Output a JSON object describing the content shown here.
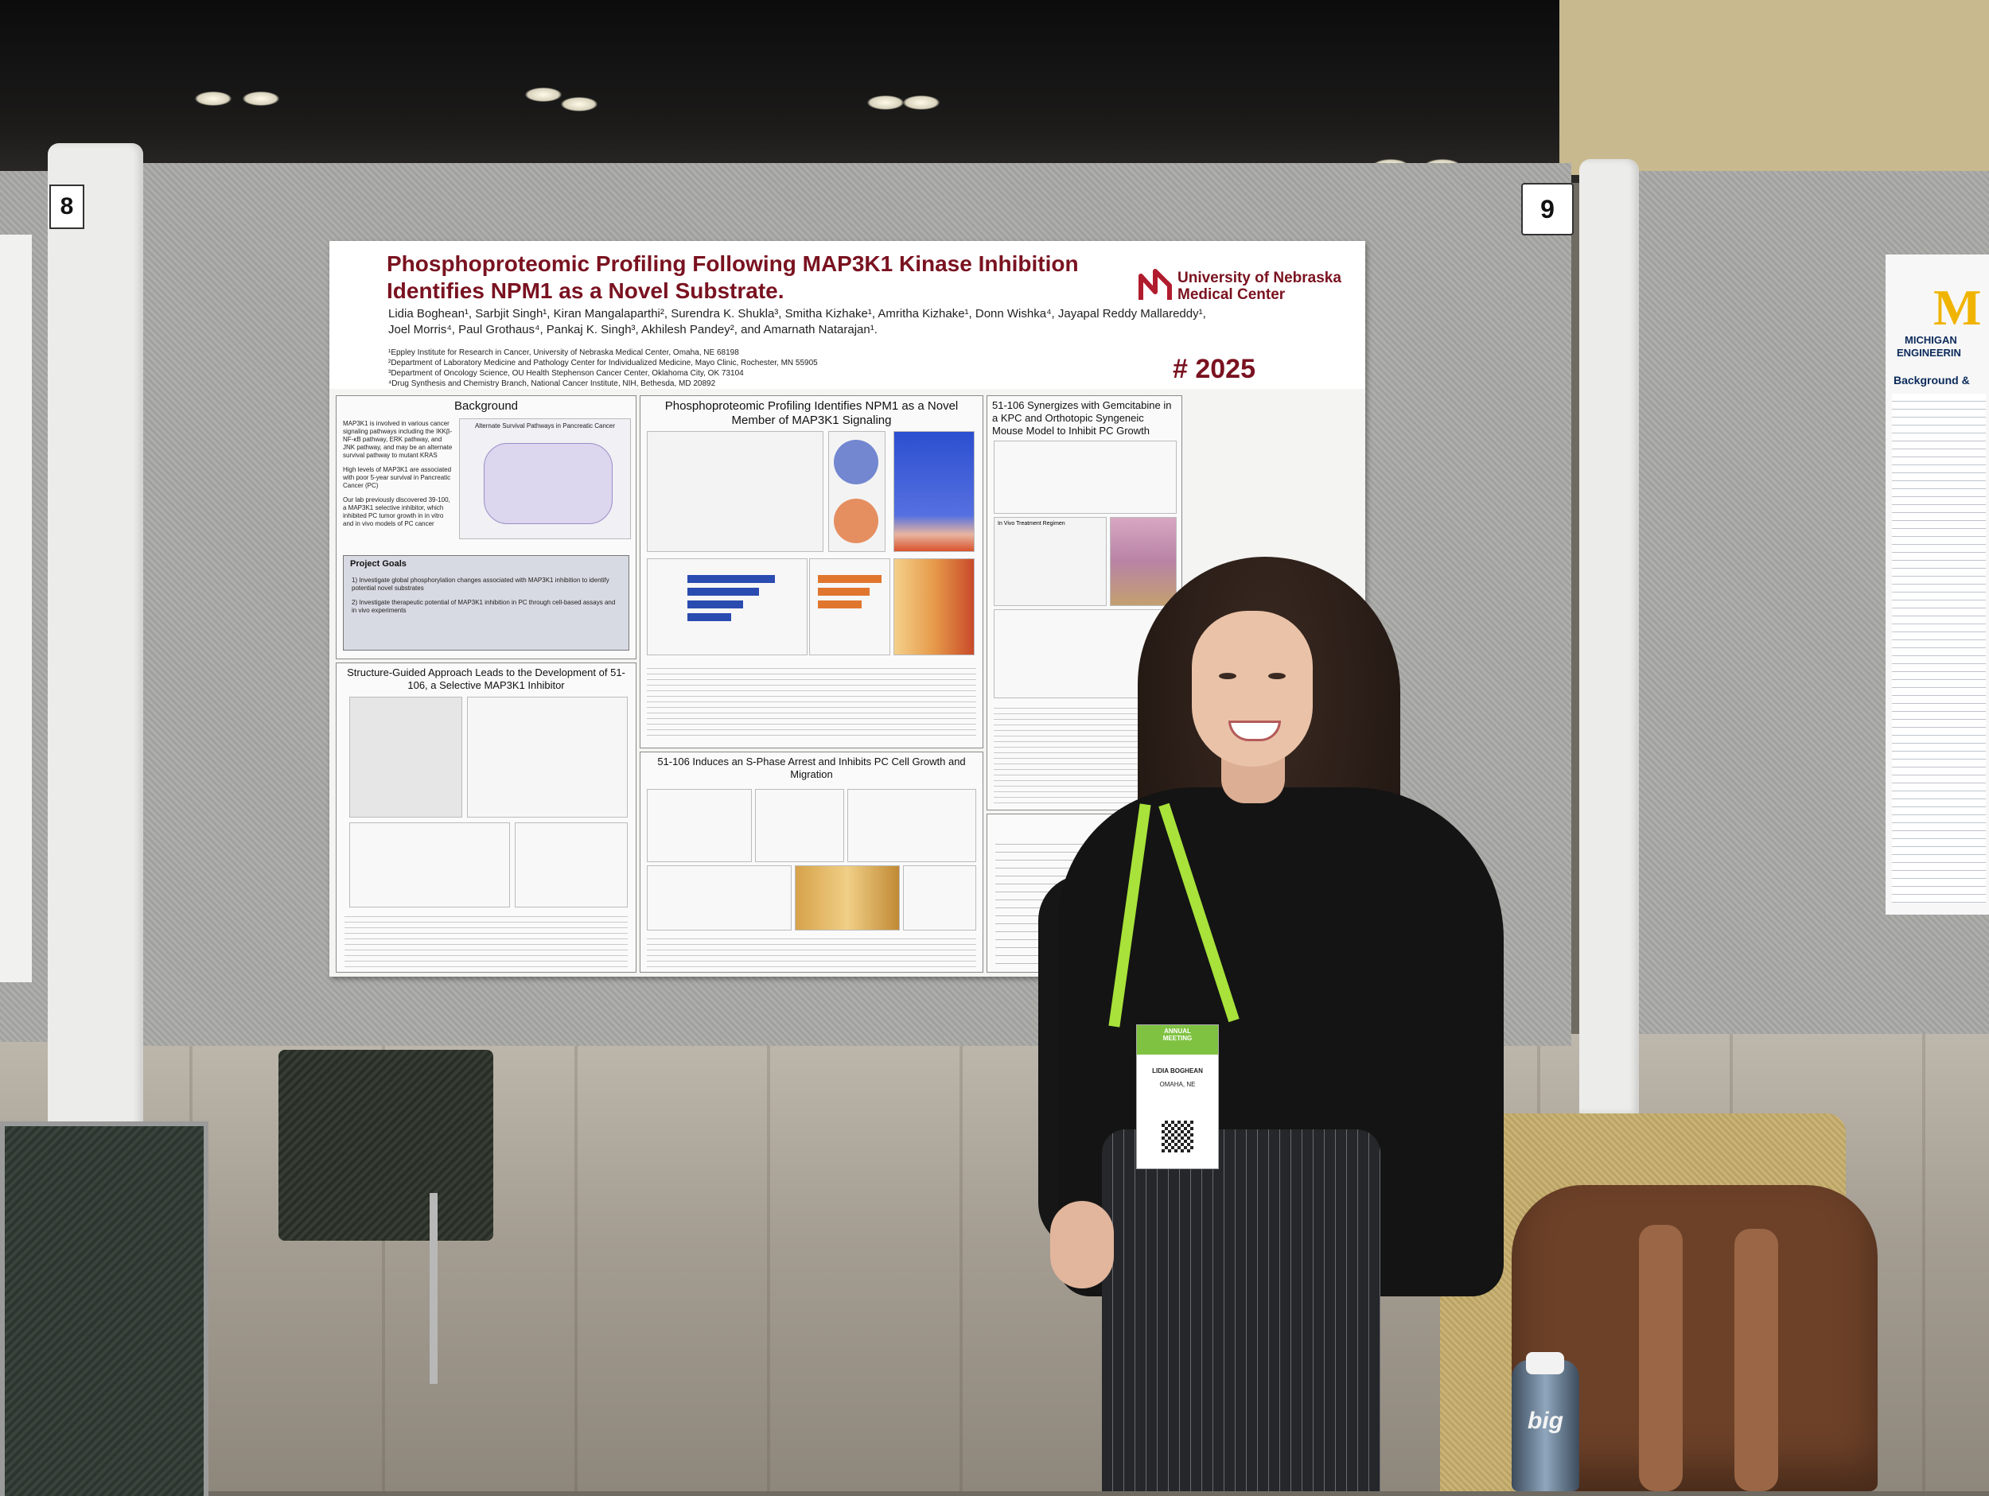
{
  "scene": {
    "board_numbers": {
      "left": "8",
      "main": "9"
    }
  },
  "poster": {
    "title_line1": "Phosphoproteomic Profiling Following MAP3K1 Kinase Inhibition",
    "title_line2": "Identifies NPM1 as a Novel Substrate.",
    "authors_line1": "Lidia Boghean¹, Sarbjit Singh¹, Kiran Mangalaparthi², Surendra K. Shukla³, Smitha Kizhake¹, Amritha Kizhake¹, Donn Wishka⁴, Jayapal Reddy Mallareddy¹,",
    "authors_line2": "Joel Morris⁴, Paul Grothaus⁴, Pankaj K. Singh³, Akhilesh Pandey², and Amarnath Natarajan¹.",
    "affiliations": [
      "¹Eppley Institute for Research in Cancer, University of Nebraska Medical Center, Omaha, NE 68198",
      "²Department of Laboratory Medicine and Pathology Center for Individualized Medicine, Mayo Clinic, Rochester, MN 55905",
      "³Department of Oncology Science, OU Health Stephenson Cancer Center, Oklahoma City, OK 73104",
      "⁴Drug Synthesis and Chemistry Branch, National Cancer Institute, NIH, Bethesda, MD 20892"
    ],
    "logo_line1": "University of Nebraska",
    "logo_line2": "Medical Center",
    "poster_number": "# 2025",
    "sections": {
      "background": {
        "title": "Background",
        "bullets": [
          "MAP3K1 is involved in various cancer signaling pathways including the IKKβ-NF-κB pathway, ERK pathway, and JNK pathway, and may be an alternate survival pathway to mutant KRAS",
          "High levels of MAP3K1 are associated with poor 5-year survival in Pancreatic Cancer (PC)",
          "Our lab previously discovered 39-100, a MAP3K1 selective inhibitor, which inhibited PC tumor growth in in vitro and in vivo models of PC cancer"
        ],
        "figure_title": "Alternate Survival Pathways in Pancreatic Cancer"
      },
      "project_goals": {
        "title": "Project Goals",
        "items": [
          "1)  Investigate global phosphorylation changes associated with MAP3K1 inhibition to identify potential novel substrates",
          "2)  Investigate therapeutic potential of MAP3K1 inhibition in PC through cell-based assays and in vivo experiments"
        ]
      },
      "structure": {
        "title": "Structure-Guided Approach Leads to the Development of 51-106, a Selective MAP3K1 Inhibitor"
      },
      "phospho": {
        "title": "Phosphoproteomic Profiling Identifies NPM1 as a Novel Member of MAP3K1 Signaling"
      },
      "sphase": {
        "title": "51-106 Induces an S-Phase Arrest and Inhibits PC Cell Growth and Migration"
      },
      "synergy": {
        "title": "51-106 Synergizes with Gemcitabine in a KPC and Orthotopic Syngeneic Mouse Model to Inhibit PC Growth",
        "regimen_label": "In Vivo Treatment Regimen"
      },
      "conclusions": {
        "title": "Conclus"
      }
    }
  },
  "badge": {
    "event_line1": "ANNUAL",
    "event_line2": "MEETING",
    "name": "LIDIA BOGHEAN",
    "location": "OMAHA, NE"
  },
  "right_poster": {
    "logo": "M",
    "line1": "MICHIGAN",
    "line2": "ENGINEERIN",
    "section": "Background &"
  },
  "bottle_label": "big"
}
